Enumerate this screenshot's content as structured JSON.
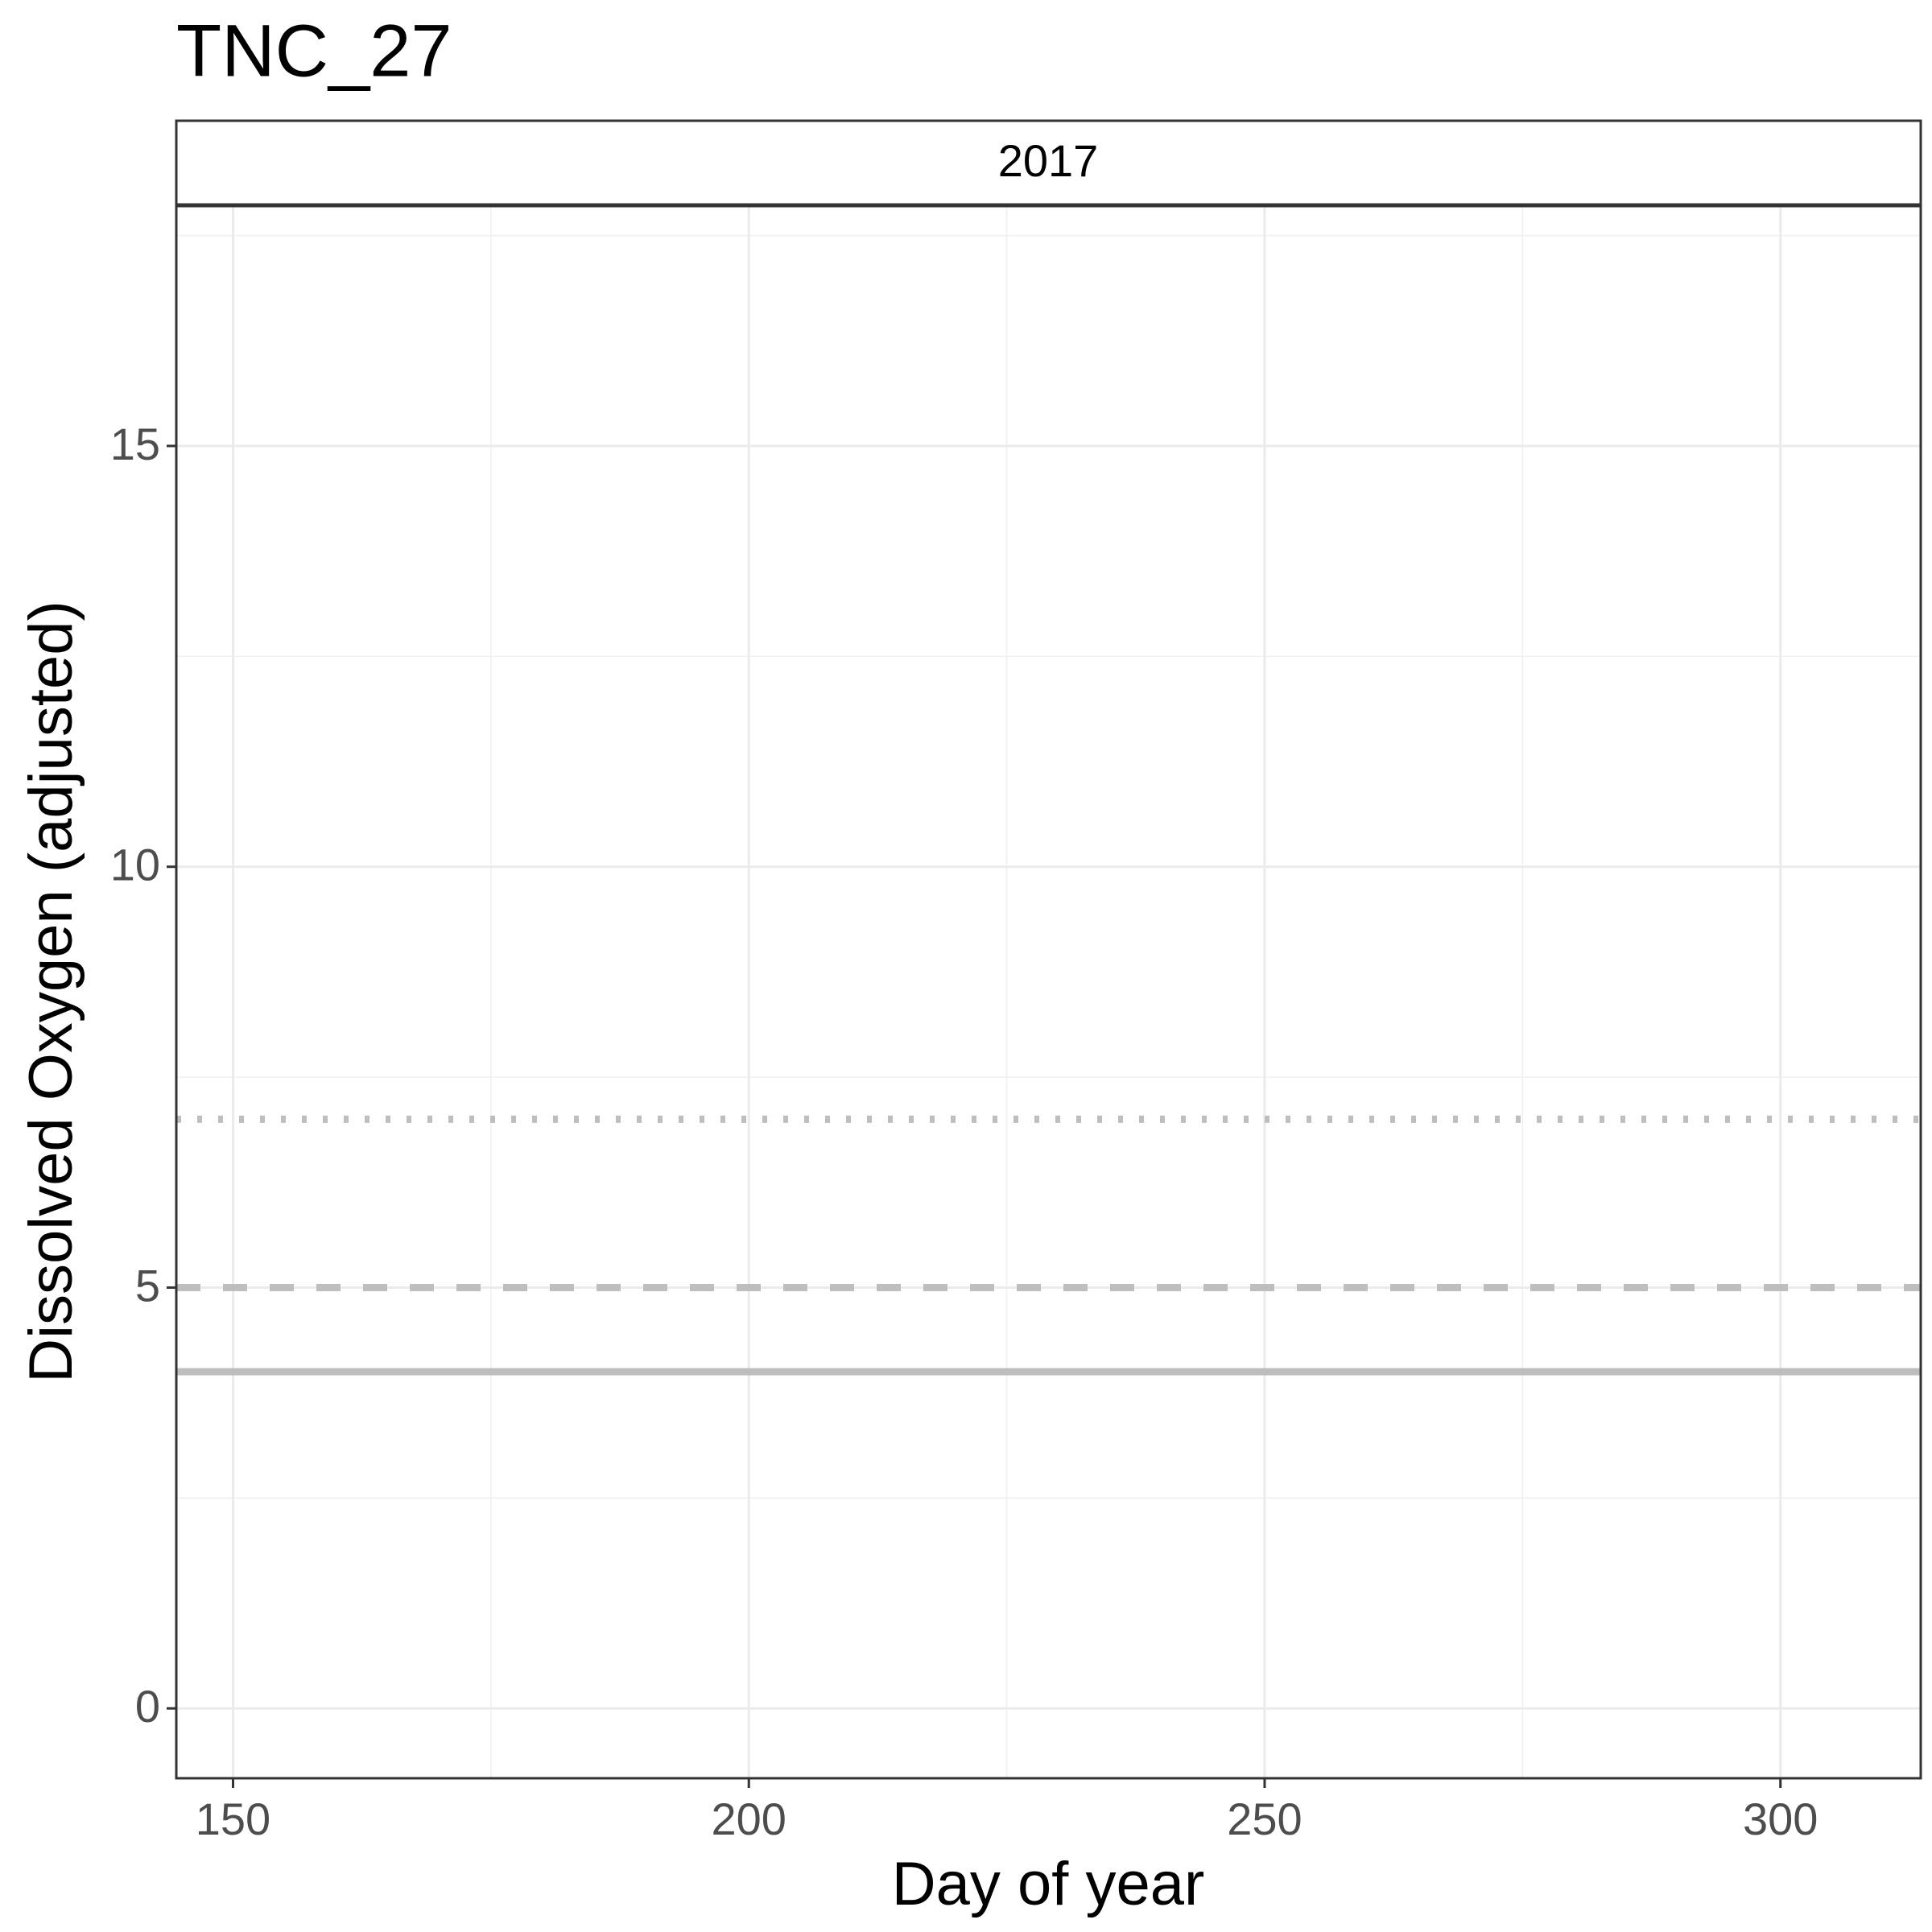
{
  "chart_data": {
    "type": "hline",
    "title": "TNC_27",
    "facet_label": "2017",
    "x_label": "Day of year",
    "y_label": "Dissolved Oxygen (adjusted)",
    "xlim": [
      144.5,
      313.6
    ],
    "xticks": [
      150,
      200,
      250,
      300
    ],
    "ylim": [
      -0.83,
      17.85
    ],
    "yticks": [
      0,
      5,
      10,
      15
    ],
    "grid": true,
    "series": [
      {
        "value": 7,
        "linetype": "dotted",
        "color": "#bebebe"
      },
      {
        "value": 5,
        "linetype": "dashed",
        "color": "#bebebe"
      },
      {
        "value": 4,
        "linetype": "solid",
        "color": "#bebebe"
      }
    ]
  }
}
